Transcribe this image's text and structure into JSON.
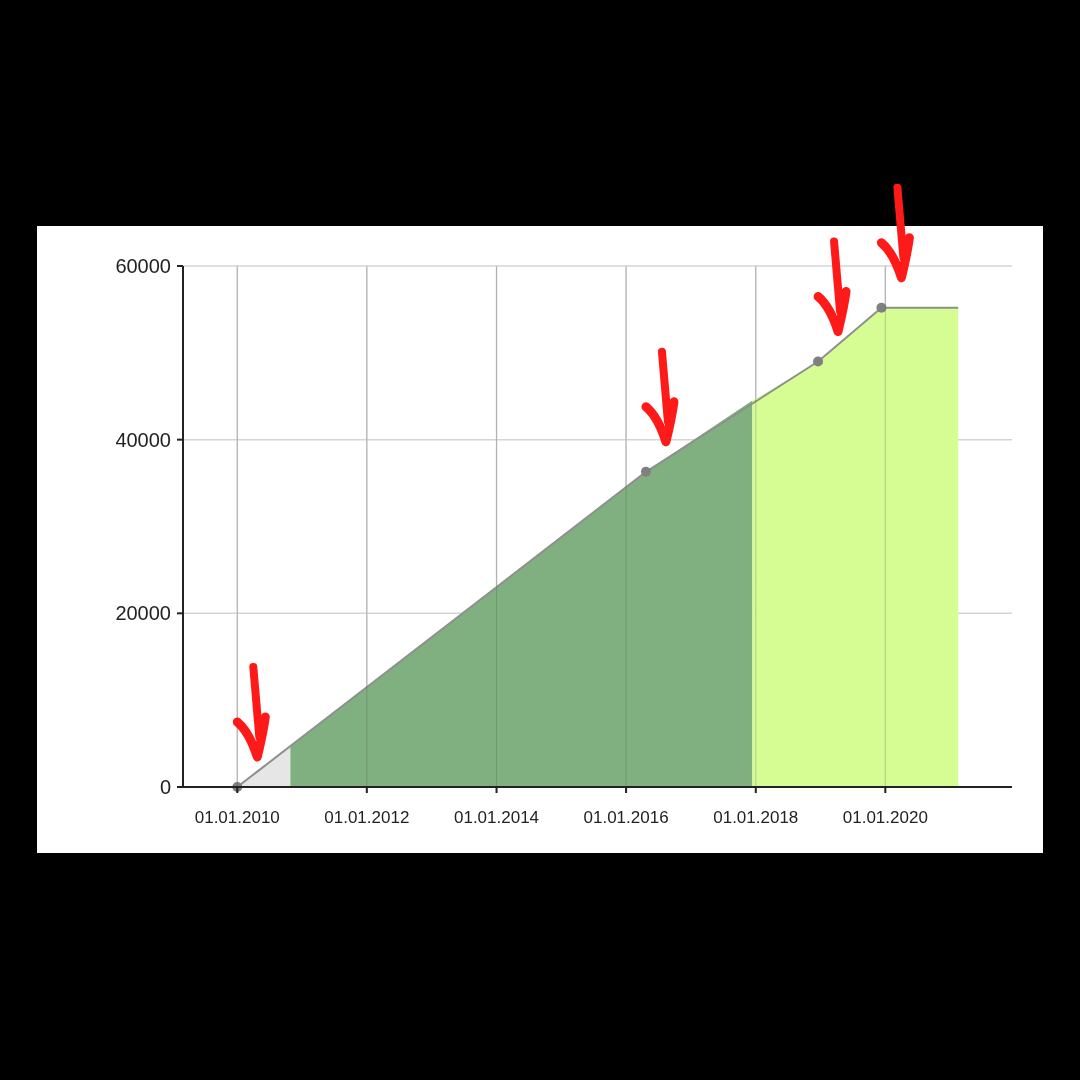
{
  "chart_data": {
    "type": "area",
    "xlim": [
      "2009-03-01",
      "2021-12-15"
    ],
    "ylim": [
      0,
      60000
    ],
    "xticks": [
      {
        "value": "2010-01-01",
        "label": "01.01.2010"
      },
      {
        "value": "2012-01-01",
        "label": "01.01.2012"
      },
      {
        "value": "2014-01-01",
        "label": "01.01.2014"
      },
      {
        "value": "2016-01-01",
        "label": "01.01.2016"
      },
      {
        "value": "2018-01-01",
        "label": "01.01.2018"
      },
      {
        "value": "2020-01-01",
        "label": "01.01.2020"
      }
    ],
    "yticks": [
      0,
      20000,
      40000,
      60000
    ],
    "grid": true,
    "series": [
      {
        "color": "#e6e6e6",
        "x": [
          "2010-01-01",
          "2010-10-27"
        ],
        "values": [
          0,
          4700
        ]
      },
      {
        "color": "#80b07f",
        "x": [
          "2010-10-27",
          "2016-04-22",
          "2017-12-13"
        ],
        "values": [
          4700,
          36300,
          44500
        ]
      },
      {
        "color": "#d6fc94",
        "x": [
          "2017-12-13",
          "2018-12-18",
          "2019-12-10",
          "2021-02-15"
        ],
        "values": [
          44500,
          49000,
          55200,
          55200
        ]
      },
      {
        "type": "line",
        "color": "#8f8f8f",
        "marker": "none",
        "x": [
          "2010-01-01",
          "2016-04-22",
          "2018-12-18",
          "2019-12-10",
          "2021-02-15"
        ],
        "values": [
          0,
          36300,
          49000,
          55200,
          55200
        ]
      },
      {
        "type": "scatter",
        "color": "#808080",
        "marker": "circle",
        "x": [
          "2010-01-01",
          "2016-04-22",
          "2018-12-18",
          "2019-12-10"
        ],
        "values": [
          0,
          36300,
          49000,
          55200
        ]
      }
    ]
  }
}
